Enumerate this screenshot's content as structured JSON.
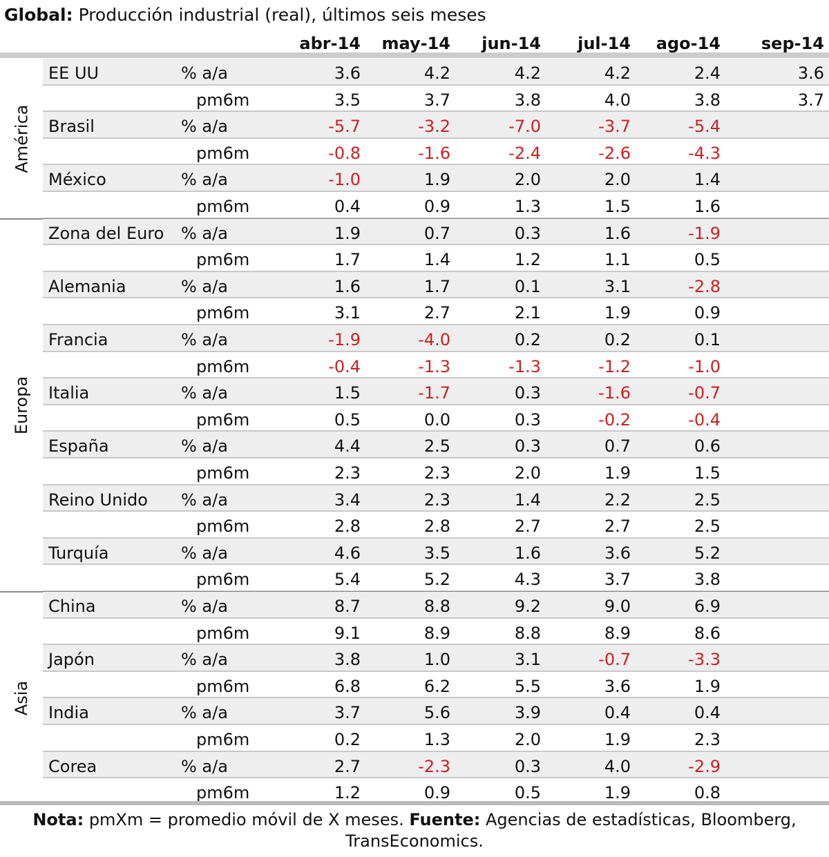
{
  "title": {
    "lead": "Global:",
    "text": "Producción industrial (real), últimos seis meses"
  },
  "columns": [
    "abr-14",
    "may-14",
    "jun-14",
    "jul-14",
    "ago-14",
    "sep-14"
  ],
  "regions": [
    {
      "name": "América",
      "countries": [
        {
          "name": "EE UU",
          "rows": [
            {
              "measure": "% a/a",
              "values": [
                "3.6",
                "4.2",
                "4.2",
                "4.2",
                "2.4",
                "3.6"
              ]
            },
            {
              "measure": "pm6m",
              "values": [
                "3.5",
                "3.7",
                "3.8",
                "4.0",
                "3.8",
                "3.7"
              ]
            }
          ]
        },
        {
          "name": "Brasil",
          "rows": [
            {
              "measure": "% a/a",
              "values": [
                "-5.7",
                "-3.2",
                "-7.0",
                "-3.7",
                "-5.4",
                ""
              ]
            },
            {
              "measure": "pm6m",
              "values": [
                "-0.8",
                "-1.6",
                "-2.4",
                "-2.6",
                "-4.3",
                ""
              ]
            }
          ]
        },
        {
          "name": "México",
          "rows": [
            {
              "measure": "% a/a",
              "values": [
                "-1.0",
                "1.9",
                "2.0",
                "2.0",
                "1.4",
                ""
              ]
            },
            {
              "measure": "pm6m",
              "values": [
                "0.4",
                "0.9",
                "1.3",
                "1.5",
                "1.6",
                ""
              ]
            }
          ]
        }
      ]
    },
    {
      "name": "Europa",
      "countries": [
        {
          "name": "Zona del Euro",
          "rows": [
            {
              "measure": "% a/a",
              "values": [
                "1.9",
                "0.7",
                "0.3",
                "1.6",
                "-1.9",
                ""
              ]
            },
            {
              "measure": "pm6m",
              "values": [
                "1.7",
                "1.4",
                "1.2",
                "1.1",
                "0.5",
                ""
              ]
            }
          ]
        },
        {
          "name": "Alemania",
          "rows": [
            {
              "measure": "% a/a",
              "values": [
                "1.6",
                "1.7",
                "0.1",
                "3.1",
                "-2.8",
                ""
              ]
            },
            {
              "measure": "pm6m",
              "values": [
                "3.1",
                "2.7",
                "2.1",
                "1.9",
                "0.9",
                ""
              ]
            }
          ]
        },
        {
          "name": "Francia",
          "rows": [
            {
              "measure": "% a/a",
              "values": [
                "-1.9",
                "-4.0",
                "0.2",
                "0.2",
                "0.1",
                ""
              ]
            },
            {
              "measure": "pm6m",
              "values": [
                "-0.4",
                "-1.3",
                "-1.3",
                "-1.2",
                "-1.0",
                ""
              ]
            }
          ]
        },
        {
          "name": "Italia",
          "rows": [
            {
              "measure": "% a/a",
              "values": [
                "1.5",
                "-1.7",
                "0.3",
                "-1.6",
                "-0.7",
                ""
              ]
            },
            {
              "measure": "pm6m",
              "values": [
                "0.5",
                "0.0",
                "0.3",
                "-0.2",
                "-0.4",
                ""
              ]
            }
          ]
        },
        {
          "name": "España",
          "rows": [
            {
              "measure": "% a/a",
              "values": [
                "4.4",
                "2.5",
                "0.3",
                "0.7",
                "0.6",
                ""
              ]
            },
            {
              "measure": "pm6m",
              "values": [
                "2.3",
                "2.3",
                "2.0",
                "1.9",
                "1.5",
                ""
              ]
            }
          ]
        },
        {
          "name": "Reino Unido",
          "rows": [
            {
              "measure": "% a/a",
              "values": [
                "3.4",
                "2.3",
                "1.4",
                "2.2",
                "2.5",
                ""
              ]
            },
            {
              "measure": "pm6m",
              "values": [
                "2.8",
                "2.8",
                "2.7",
                "2.7",
                "2.5",
                ""
              ]
            }
          ]
        },
        {
          "name": "Turquía",
          "rows": [
            {
              "measure": "% a/a",
              "values": [
                "4.6",
                "3.5",
                "1.6",
                "3.6",
                "5.2",
                ""
              ]
            },
            {
              "measure": "pm6m",
              "values": [
                "5.4",
                "5.2",
                "4.3",
                "3.7",
                "3.8",
                ""
              ]
            }
          ]
        }
      ]
    },
    {
      "name": "Asia",
      "countries": [
        {
          "name": "China",
          "rows": [
            {
              "measure": "% a/a",
              "values": [
                "8.7",
                "8.8",
                "9.2",
                "9.0",
                "6.9",
                ""
              ]
            },
            {
              "measure": "pm6m",
              "values": [
                "9.1",
                "8.9",
                "8.8",
                "8.9",
                "8.6",
                ""
              ]
            }
          ]
        },
        {
          "name": "Japón",
          "rows": [
            {
              "measure": "% a/a",
              "values": [
                "3.8",
                "1.0",
                "3.1",
                "-0.7",
                "-3.3",
                ""
              ]
            },
            {
              "measure": "pm6m",
              "values": [
                "6.8",
                "6.2",
                "5.5",
                "3.6",
                "1.9",
                ""
              ]
            }
          ]
        },
        {
          "name": "India",
          "rows": [
            {
              "measure": "% a/a",
              "values": [
                "3.7",
                "5.6",
                "3.9",
                "0.4",
                "0.4",
                ""
              ]
            },
            {
              "measure": "pm6m",
              "values": [
                "0.2",
                "1.3",
                "2.0",
                "1.9",
                "2.3",
                ""
              ]
            }
          ]
        },
        {
          "name": "Corea",
          "rows": [
            {
              "measure": "% a/a",
              "values": [
                "2.7",
                "-2.3",
                "0.3",
                "4.0",
                "-2.9",
                ""
              ]
            },
            {
              "measure": "pm6m",
              "values": [
                "1.2",
                "0.9",
                "0.5",
                "1.9",
                "0.8",
                ""
              ]
            }
          ]
        }
      ]
    }
  ],
  "footnote": {
    "note_label": "Nota:",
    "note_text": " pmXm = promedio móvil de X meses. ",
    "source_label": "Fuente:",
    "source_text_line1": " Agencias de estadísticas, Bloomberg,",
    "source_text_line2": "TransEconomics."
  },
  "colors": {
    "negative": "#cc1f1f",
    "shade": "#eeeeee",
    "rule": "#cccccc"
  }
}
